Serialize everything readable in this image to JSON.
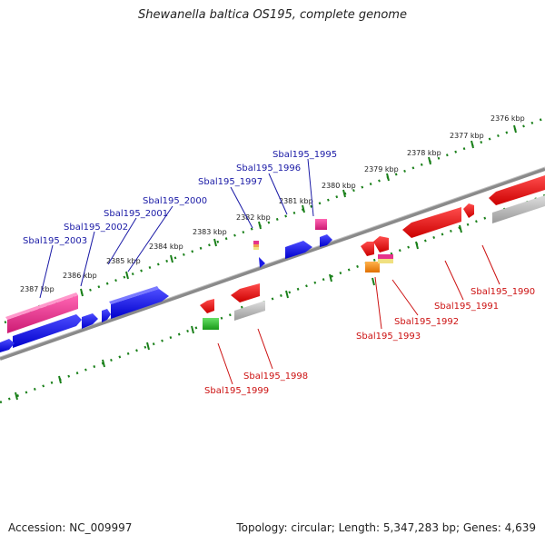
{
  "title": "Shewanella baltica OS195, complete genome",
  "footer": {
    "accession": "Accession: NC_009997",
    "topology": "Topology: circular; Length: 5,347,283 bp; Genes: 4,639"
  },
  "colors": {
    "forward_gene": "#1a1ae6",
    "reverse_gene": "#e61a1a",
    "pink_gene": "#e6338c",
    "gray_gene": "#b0b0b0",
    "green_gene": "#33c433",
    "orange_gene": "#f08c1a",
    "tick_green": "#1a801a",
    "label_blue": "#1a1aa6",
    "label_red": "#cc1111"
  },
  "kbp_labels": [
    "2376 kbp",
    "2377 kbp",
    "2378 kbp",
    "2379 kbp",
    "2380 kbp",
    "2381 kbp",
    "2382 kbp",
    "2383 kbp",
    "2384 kbp",
    "2385 kbp",
    "2386 kbp",
    "2387 kbp"
  ],
  "forward_genes": [
    "Sbal195_1995",
    "Sbal195_1996",
    "Sbal195_1997",
    "Sbal195_2000",
    "Sbal195_2001",
    "Sbal195_2002",
    "Sbal195_2003"
  ],
  "reverse_genes": [
    "Sbal195_1990",
    "Sbal195_1991",
    "Sbal195_1992",
    "Sbal195_1993",
    "Sbal195_1998",
    "Sbal195_1999"
  ]
}
